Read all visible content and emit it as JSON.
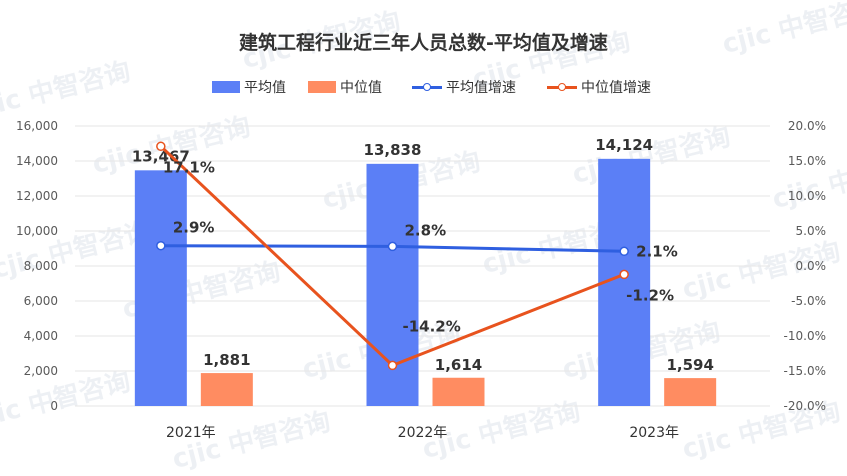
{
  "watermark": "cjic 中智咨询",
  "colors": {
    "avg_bar": "#5B7FF6",
    "median_bar": "#FF8C61",
    "avg_growth_line": "#2F5FE0",
    "median_growth_line": "#E8531E",
    "grid": "#E6E6E6",
    "text": "#333333",
    "axis_text": "#595959"
  },
  "chart_data": {
    "type": "bar",
    "title": "建筑工程行业近三年人员总数-平均值及增速",
    "categories": [
      "2021年",
      "2022年",
      "2023年"
    ],
    "legend": [
      "平均值",
      "中位值",
      "平均值增速",
      "中位值增速"
    ],
    "legend_position": "top",
    "grid": true,
    "series": [
      {
        "name": "平均值",
        "kind": "bar",
        "axis": "left",
        "values": [
          13467,
          13838,
          14124
        ],
        "labels": [
          "13,467",
          "13,838",
          "14,124"
        ]
      },
      {
        "name": "中位值",
        "kind": "bar",
        "axis": "left",
        "values": [
          1881,
          1614,
          1594
        ],
        "labels": [
          "1,881",
          "1,614",
          "1,594"
        ]
      },
      {
        "name": "平均值增速",
        "kind": "line",
        "axis": "right",
        "values": [
          2.9,
          2.8,
          2.1
        ],
        "labels": [
          "2.9%",
          "2.8%",
          "2.1%"
        ]
      },
      {
        "name": "中位值增速",
        "kind": "line",
        "axis": "right",
        "values": [
          17.1,
          -14.2,
          -1.2
        ],
        "labels": [
          "17.1%",
          "-14.2%",
          "-1.2%"
        ]
      }
    ],
    "y_left": {
      "min": 0,
      "max": 16000,
      "ticks": [
        "0",
        "2,000",
        "4,000",
        "6,000",
        "8,000",
        "10,000",
        "12,000",
        "14,000",
        "16,000"
      ]
    },
    "y_right": {
      "min": -20,
      "max": 20,
      "ticks": [
        "-20.0%",
        "-15.0%",
        "-10.0%",
        "-5.0%",
        "0.0%",
        "5.0%",
        "10.0%",
        "15.0%",
        "20.0%"
      ]
    }
  }
}
